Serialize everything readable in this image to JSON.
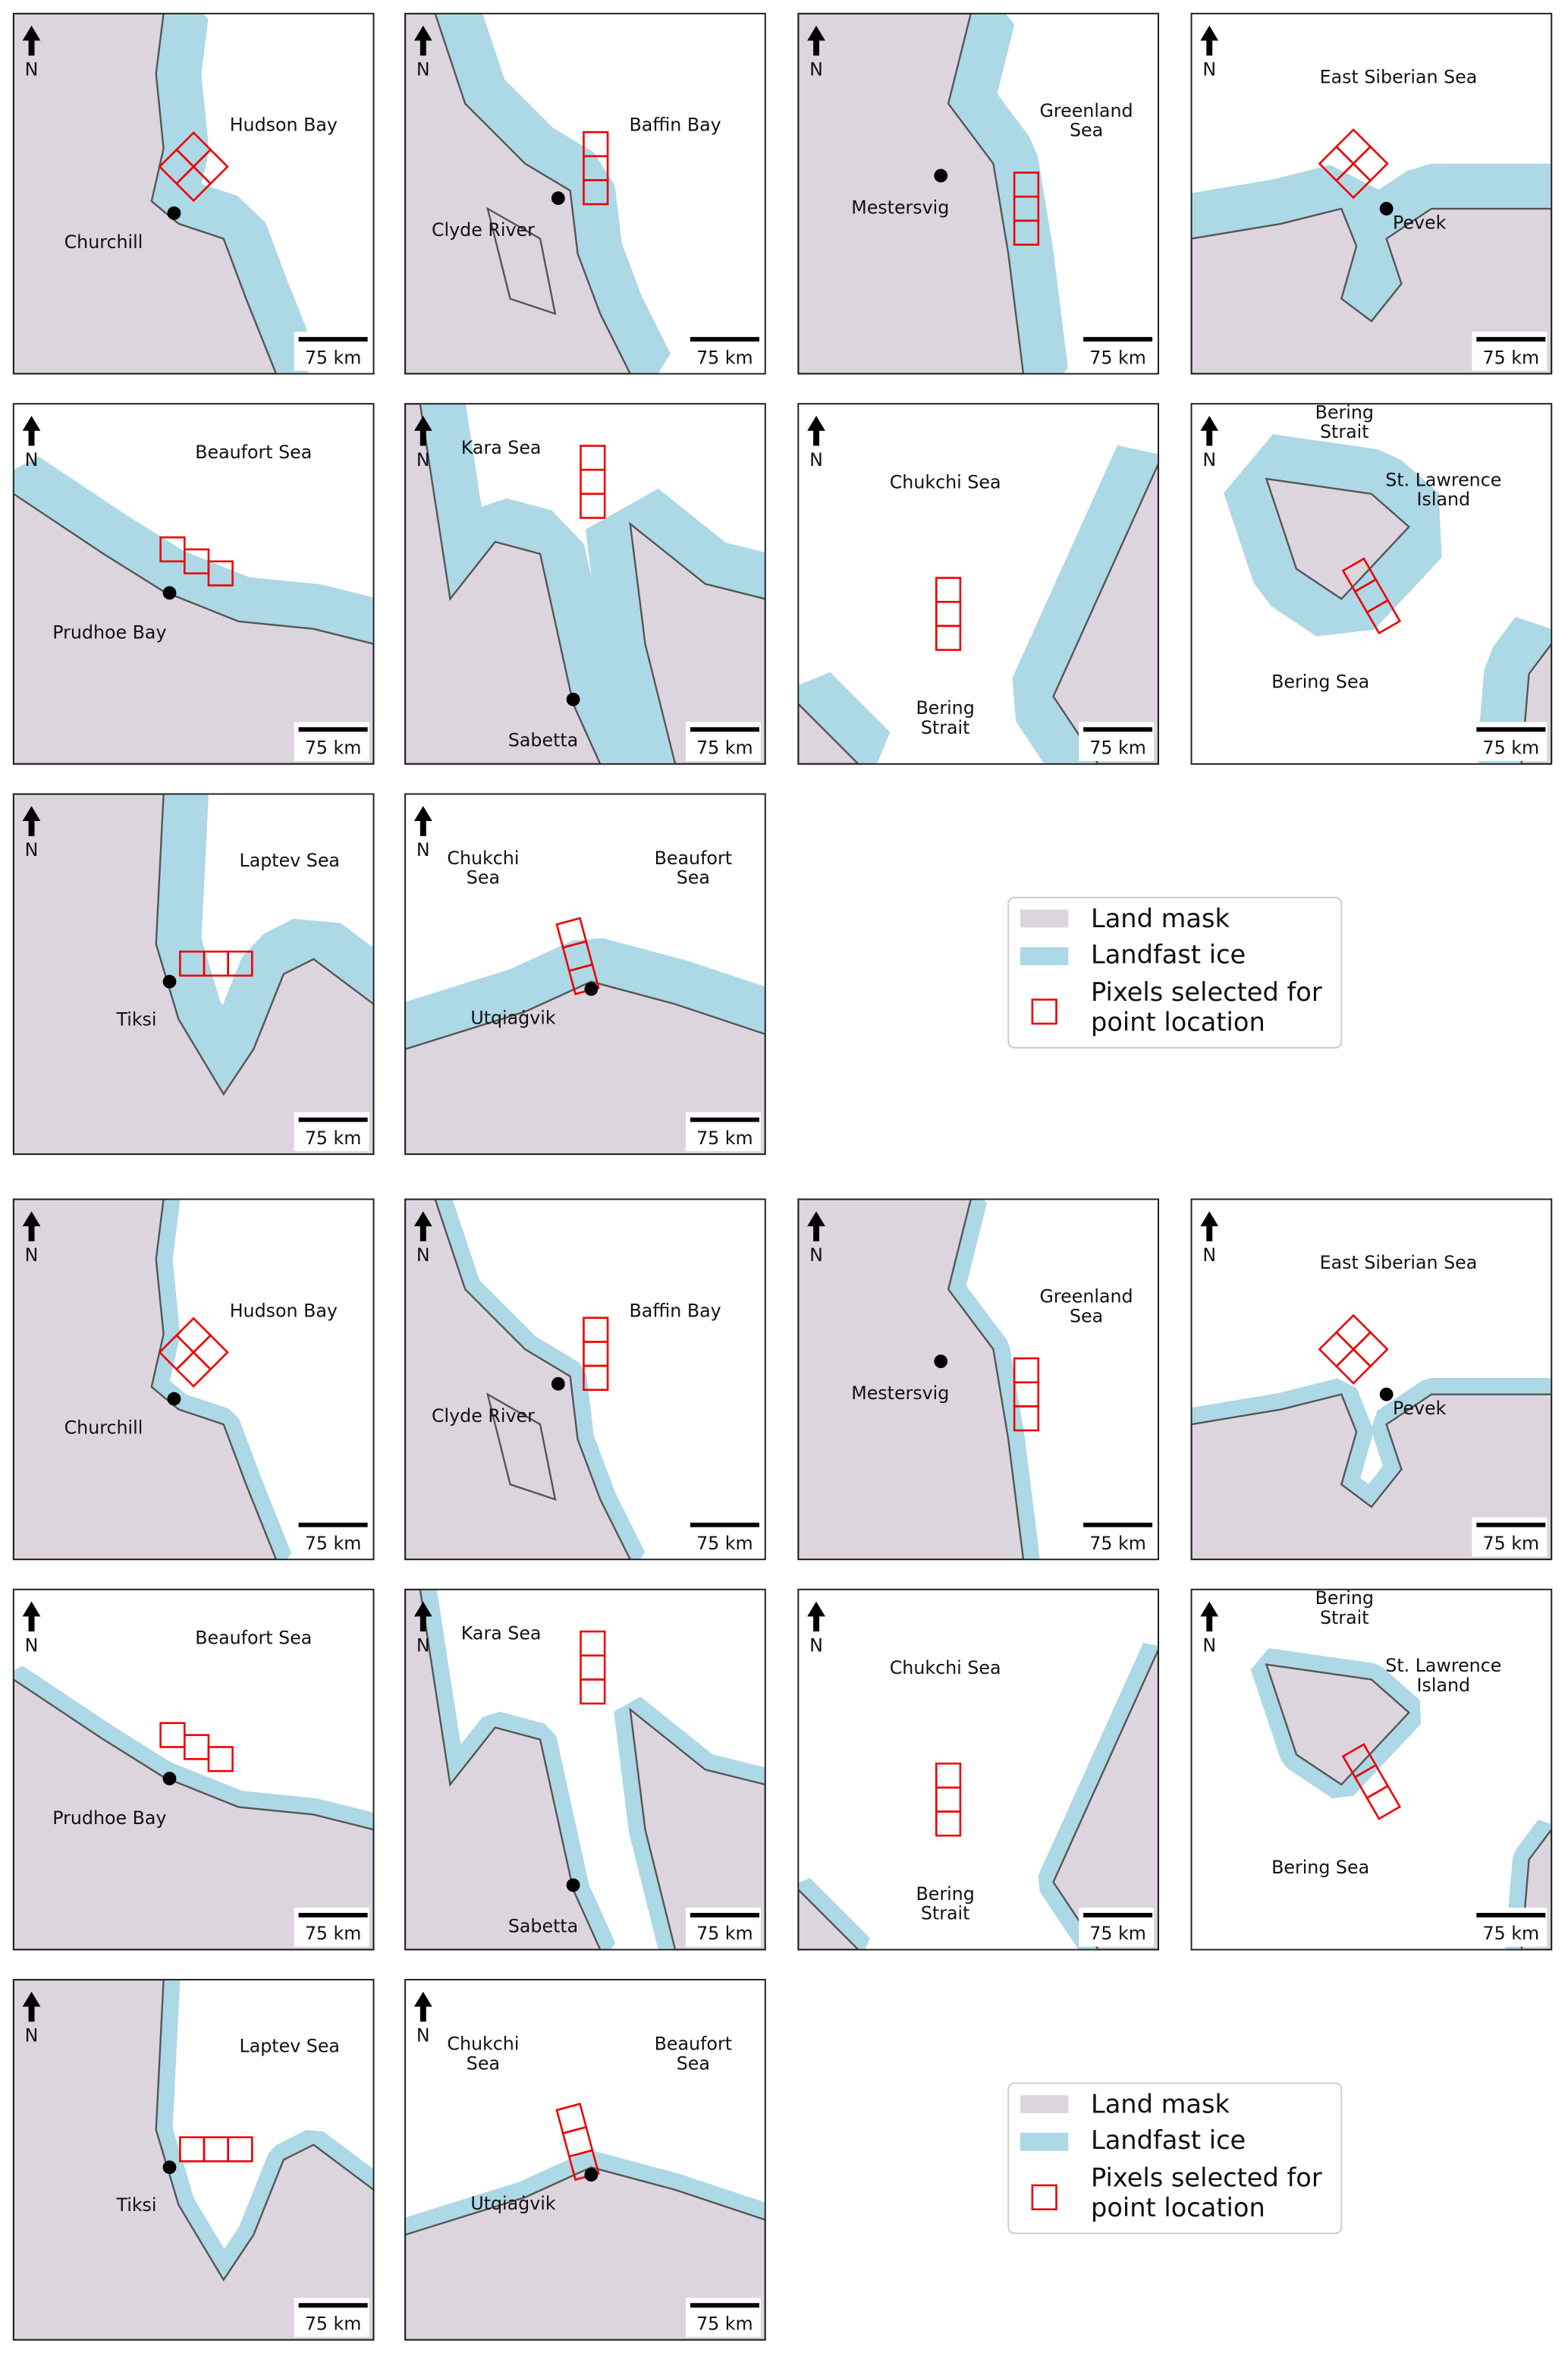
{
  "north_label": "N",
  "scale_label": "75 km",
  "panels": [
    {
      "labels": [
        [
          "Hudson Bay"
        ],
        [
          "Churchill"
        ]
      ]
    },
    {
      "labels": [
        [
          "Baffin Bay"
        ],
        [
          "Clyde River"
        ]
      ]
    },
    {
      "labels": [
        [
          "Greenland",
          "Sea"
        ],
        [
          "Mestersvig"
        ]
      ]
    },
    {
      "labels": [
        [
          "East Siberian Sea"
        ],
        [
          "Pevek"
        ]
      ]
    },
    {
      "labels": [
        [
          "Beaufort Sea"
        ],
        [
          "Prudhoe Bay"
        ]
      ]
    },
    {
      "labels": [
        [
          "Kara Sea"
        ],
        [
          "Sabetta"
        ]
      ]
    },
    {
      "labels": [
        [
          "Chukchi Sea"
        ],
        [
          "Bering",
          "Strait"
        ]
      ]
    },
    {
      "labels": [
        [
          "Bering",
          "Strait"
        ],
        [
          "St. Lawrence",
          "Island"
        ],
        [
          "Bering Sea"
        ]
      ]
    },
    {
      "labels": [
        [
          "Laptev Sea"
        ],
        [
          "Tiksi"
        ]
      ]
    },
    {
      "labels": [
        [
          "Chukchi",
          "Sea"
        ],
        [
          "Beaufort",
          "Sea"
        ],
        [
          "Utqiaġvik"
        ]
      ]
    }
  ],
  "legend": {
    "land_mask": "Land mask",
    "landfast_ice": "Landfast ice",
    "pixels": [
      "Pixels selected for",
      "point location"
    ]
  }
}
